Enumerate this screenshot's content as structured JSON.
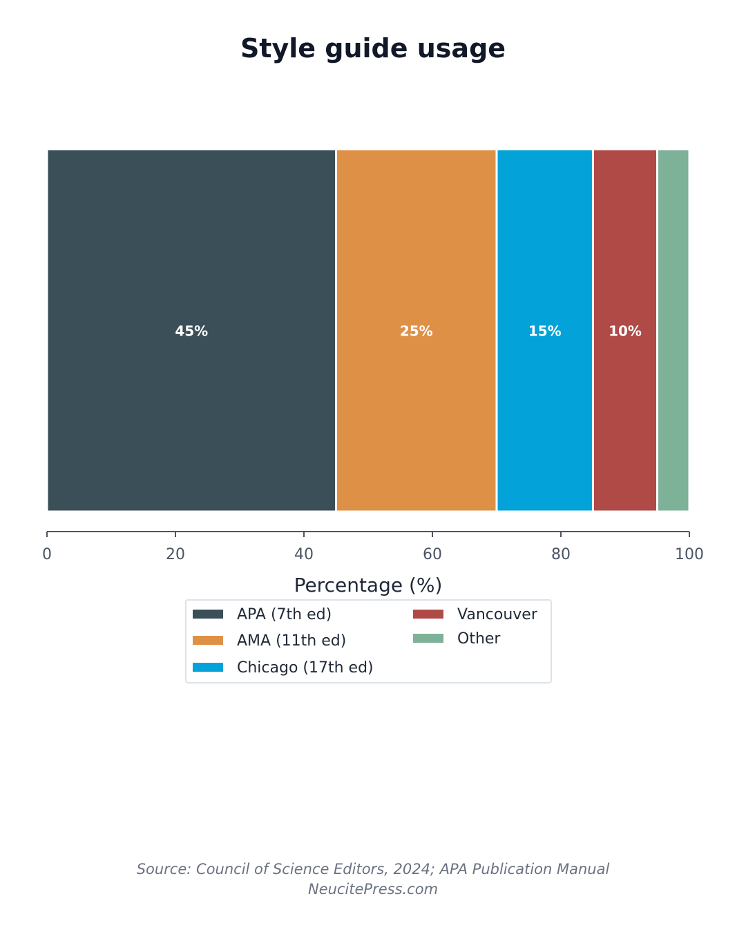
{
  "chart_data": {
    "type": "bar",
    "orientation": "horizontal",
    "stacked": true,
    "title": "Style guide usage",
    "xlabel": "Percentage (%)",
    "ylabel": "",
    "xlim": [
      0,
      100
    ],
    "x_ticks": [
      "0",
      "20",
      "40",
      "60",
      "80",
      "100"
    ],
    "grid": false,
    "legend_position": "below-axis",
    "series": [
      {
        "name": "APA (7th ed)",
        "value": 45,
        "label": "45%",
        "color": "#3a4f57"
      },
      {
        "name": "AMA (11th ed)",
        "value": 25,
        "label": "25%",
        "color": "#df9047"
      },
      {
        "name": "Chicago (17th ed)",
        "value": 15,
        "label": "15%",
        "color": "#03a2d8"
      },
      {
        "name": "Vancouver",
        "value": 10,
        "label": "10%",
        "color": "#b04a46"
      },
      {
        "name": "Other",
        "value": 5,
        "label": "",
        "color": "#7db198"
      }
    ]
  },
  "footer": {
    "source": "Source: Council of Science Editors, 2024; APA Publication Manual",
    "site": "NeucitePress.com"
  },
  "colors": {
    "axis": "#4b5563",
    "legend_border": "#dbe3ea"
  }
}
